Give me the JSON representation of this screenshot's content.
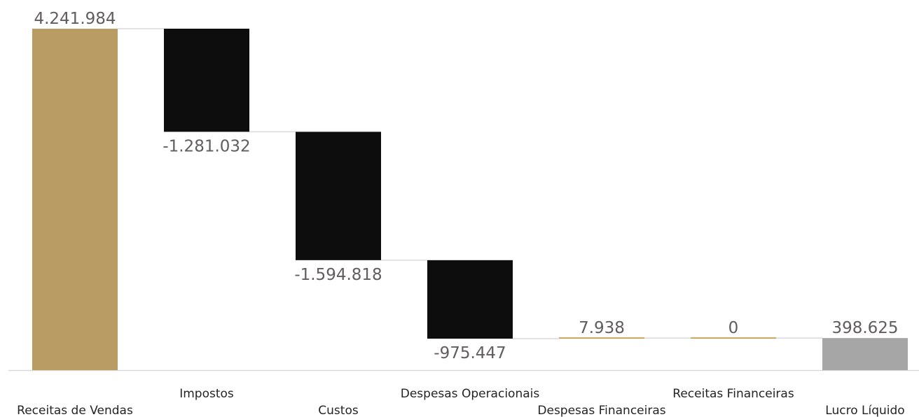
{
  "chart_data": {
    "type": "waterfall",
    "title": "",
    "xlabel": "",
    "ylabel": "",
    "categories": [
      "Receitas de Vendas",
      "Impostos",
      "Custos",
      "Despesas Operacionais",
      "Despesas Financeiras",
      "Receitas Financeiras",
      "Lucro Líquido"
    ],
    "values": [
      4241984,
      -1281032,
      -1594818,
      -975447,
      7938,
      0,
      398625
    ],
    "value_labels": [
      "4.241.984",
      "-1.281.032",
      "-1.594.818",
      "-975.447",
      "7.938",
      "0",
      "398.625"
    ],
    "kinds": [
      "total",
      "delta",
      "delta",
      "delta",
      "delta",
      "delta",
      "total"
    ],
    "ylim": [
      0,
      4241984
    ],
    "grid": false,
    "legend": "none",
    "colors": {
      "total_start": "#b89c64",
      "decrease": "#0d0d0d",
      "increase": "#c8a461",
      "total_end": "#a6a6a6",
      "connector": "#d9d9d9",
      "baseline": "#d9d9d9"
    }
  }
}
